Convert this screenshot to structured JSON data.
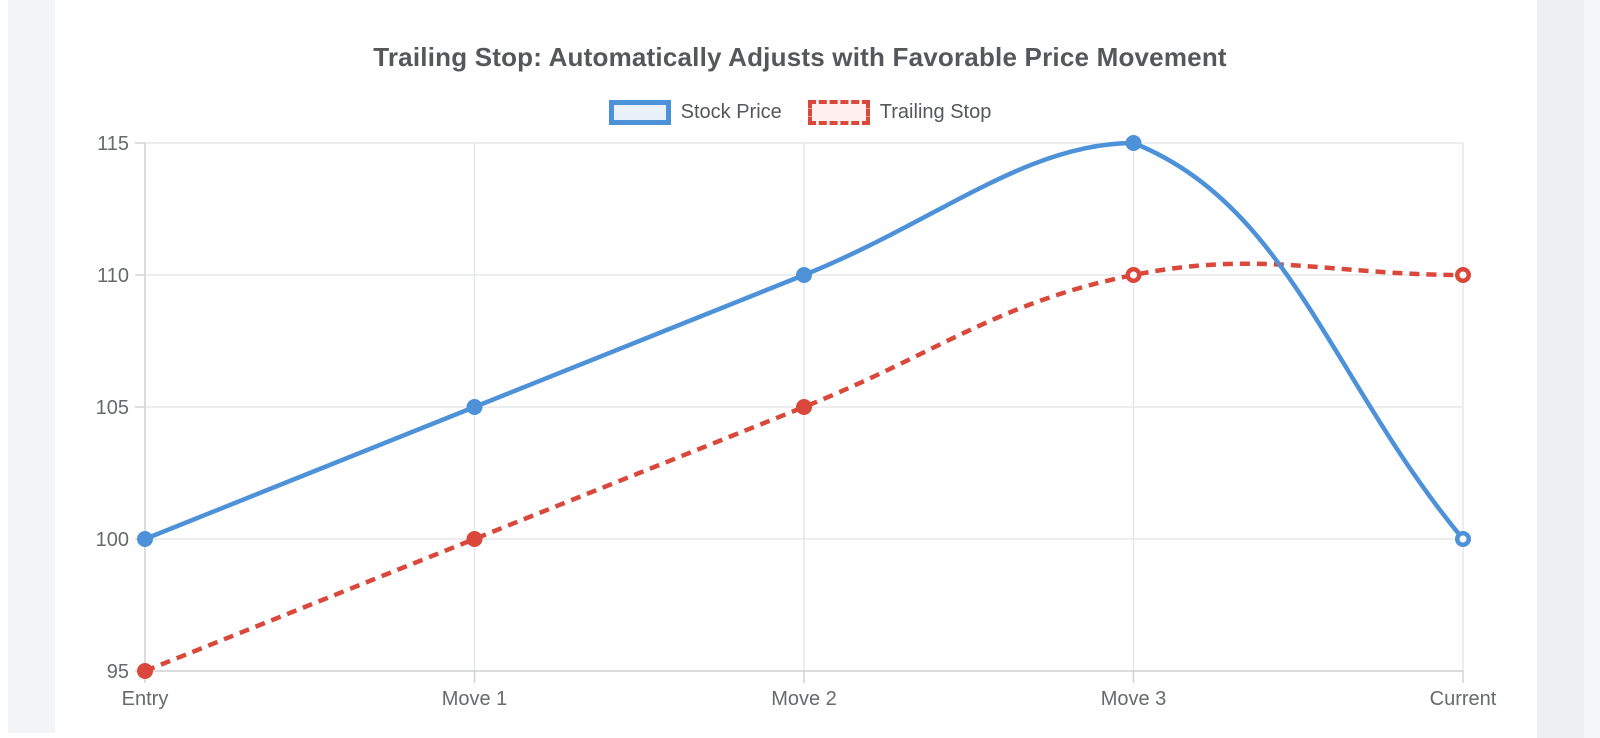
{
  "chart_data": {
    "type": "line",
    "title": "Trailing Stop: Automatically Adjusts with Favorable Price Movement",
    "categories": [
      "Entry",
      "Move 1",
      "Move 2",
      "Move 3",
      "Current"
    ],
    "series": [
      {
        "name": "Stock Price",
        "values": [
          100,
          105,
          110,
          115,
          100
        ],
        "color": "#4d92d8",
        "legend_fill": "#e9f1fb",
        "line_style": "solid",
        "hollow_points": [
          4
        ]
      },
      {
        "name": "Trailing Stop",
        "values": [
          95,
          100,
          105,
          110,
          110
        ],
        "color": "#d9483a",
        "legend_fill": "#fdf0ef",
        "line_style": "dashed",
        "hollow_points": [
          3,
          4
        ]
      }
    ],
    "xlabel": "",
    "ylabel": "",
    "ylim": [
      95,
      115
    ],
    "yticks": [
      95,
      100,
      105,
      110,
      115
    ],
    "grid": true,
    "legend_position": "top",
    "curve": "smooth",
    "colors": {
      "title": "#55575b",
      "tick_label": "#66696e",
      "gridline": "#e6e7e9",
      "axis_line": "#d2d3d5",
      "background": "#ffffff"
    }
  }
}
